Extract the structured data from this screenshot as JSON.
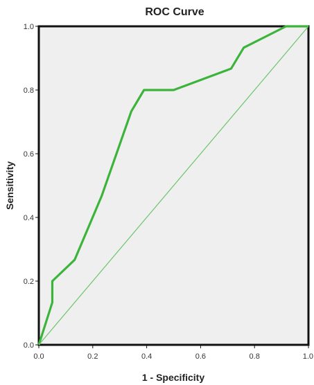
{
  "chart_data": {
    "type": "line",
    "title": "ROC Curve",
    "xlabel": "1 - Specificity",
    "ylabel": "Sensitivity",
    "xlim": [
      0.0,
      1.0
    ],
    "ylim": [
      0.0,
      1.0
    ],
    "xticks": [
      "0.0",
      "0.2",
      "0.4",
      "0.6",
      "0.8",
      "1.0"
    ],
    "yticks": [
      "0.0",
      "0.2",
      "0.4",
      "0.6",
      "0.8",
      "1.0"
    ],
    "grid": false,
    "legend": "none",
    "series": [
      {
        "role": "roc-curve",
        "color": "#3cb43c",
        "points": [
          [
            0.0,
            0.0
          ],
          [
            0.05,
            0.133
          ],
          [
            0.05,
            0.2
          ],
          [
            0.133,
            0.267
          ],
          [
            0.233,
            0.467
          ],
          [
            0.343,
            0.733
          ],
          [
            0.39,
            0.8
          ],
          [
            0.5,
            0.8
          ],
          [
            0.713,
            0.867
          ],
          [
            0.76,
            0.933
          ],
          [
            0.917,
            1.0
          ],
          [
            1.0,
            1.0
          ]
        ]
      },
      {
        "role": "reference-line",
        "color": "#6cc46c",
        "points": [
          [
            0.0,
            0.0
          ],
          [
            1.0,
            1.0
          ]
        ]
      }
    ],
    "colors": {
      "plot_background": "#efefef",
      "frame": "#111111"
    }
  }
}
